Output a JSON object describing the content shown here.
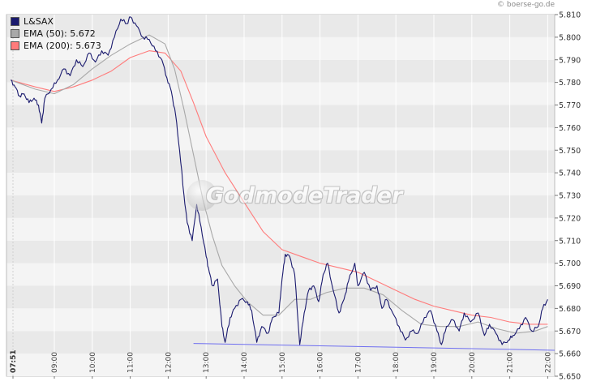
{
  "credit": "© boerse-go.de",
  "watermark": "GodmodeTrader",
  "colors": {
    "price": "#1a1a6e",
    "ema50": "#a8a8a8",
    "ema200": "#ff7b7b",
    "support": "#6f6ff0",
    "band_light": "#f4f4f4",
    "band_dark": "#e9e9e9"
  },
  "chart_data": {
    "type": "line",
    "title": "",
    "xlabel": "",
    "ylabel": "",
    "ylim": [
      5.65,
      5.81
    ],
    "y_ticks": [
      "5.650",
      "5.660",
      "5.670",
      "5.680",
      "5.690",
      "5.700",
      "5.710",
      "5.720",
      "5.730",
      "5.740",
      "5.750",
      "5.760",
      "5.770",
      "5.780",
      "5.790",
      "5.800",
      "5.810"
    ],
    "x_start_label": "07:51",
    "x_ticks": [
      "09:00",
      "10:00",
      "11:00",
      "12:00",
      "13:00",
      "14:00",
      "15:00",
      "16:00",
      "17:00",
      "18:00",
      "19:00",
      "20:00",
      "21:00",
      "22:00"
    ],
    "legend_position": "top-left",
    "grid": true,
    "series": [
      {
        "name": "L&SAX",
        "legend": "L&SAX",
        "points": [
          [
            "07:51",
            5.781
          ],
          [
            "07:58",
            5.778
          ],
          [
            "08:05",
            5.774
          ],
          [
            "08:12",
            5.775
          ],
          [
            "08:20",
            5.771
          ],
          [
            "08:28",
            5.773
          ],
          [
            "08:35",
            5.77
          ],
          [
            "08:40",
            5.762
          ],
          [
            "08:45",
            5.773
          ],
          [
            "08:55",
            5.777
          ],
          [
            "09:05",
            5.781
          ],
          [
            "09:15",
            5.786
          ],
          [
            "09:25",
            5.783
          ],
          [
            "09:35",
            5.79
          ],
          [
            "09:45",
            5.787
          ],
          [
            "09:55",
            5.793
          ],
          [
            "10:05",
            5.789
          ],
          [
            "10:15",
            5.794
          ],
          [
            "10:25",
            5.792
          ],
          [
            "10:35",
            5.8
          ],
          [
            "10:45",
            5.808
          ],
          [
            "10:55",
            5.806
          ],
          [
            "11:00",
            5.809
          ],
          [
            "11:10",
            5.805
          ],
          [
            "11:20",
            5.8
          ],
          [
            "11:30",
            5.799
          ],
          [
            "11:40",
            5.794
          ],
          [
            "11:50",
            5.79
          ],
          [
            "11:58",
            5.782
          ],
          [
            "12:05",
            5.776
          ],
          [
            "12:12",
            5.765
          ],
          [
            "12:18",
            5.75
          ],
          [
            "12:25",
            5.73
          ],
          [
            "12:30",
            5.718
          ],
          [
            "12:38",
            5.71
          ],
          [
            "12:45",
            5.726
          ],
          [
            "12:52",
            5.716
          ],
          [
            "13:00",
            5.703
          ],
          [
            "13:05",
            5.696
          ],
          [
            "13:10",
            5.69
          ],
          [
            "13:18",
            5.693
          ],
          [
            "13:25",
            5.672
          ],
          [
            "13:30",
            5.665
          ],
          [
            "13:38",
            5.676
          ],
          [
            "13:45",
            5.68
          ],
          [
            "13:55",
            5.684
          ],
          [
            "14:05",
            5.683
          ],
          [
            "14:12",
            5.679
          ],
          [
            "14:20",
            5.665
          ],
          [
            "14:28",
            5.672
          ],
          [
            "14:38",
            5.669
          ],
          [
            "14:45",
            5.676
          ],
          [
            "14:55",
            5.678
          ],
          [
            "15:00",
            5.693
          ],
          [
            "15:05",
            5.704
          ],
          [
            "15:12",
            5.703
          ],
          [
            "15:20",
            5.695
          ],
          [
            "15:28",
            5.664
          ],
          [
            "15:35",
            5.678
          ],
          [
            "15:42",
            5.688
          ],
          [
            "15:50",
            5.69
          ],
          [
            "15:58",
            5.683
          ],
          [
            "16:05",
            5.695
          ],
          [
            "16:12",
            5.7
          ],
          [
            "16:20",
            5.689
          ],
          [
            "16:30",
            5.678
          ],
          [
            "16:38",
            5.684
          ],
          [
            "16:45",
            5.692
          ],
          [
            "16:55",
            5.7
          ],
          [
            "17:00",
            5.69
          ],
          [
            "17:10",
            5.696
          ],
          [
            "17:20",
            5.688
          ],
          [
            "17:30",
            5.69
          ],
          [
            "17:38",
            5.68
          ],
          [
            "17:45",
            5.684
          ],
          [
            "17:55",
            5.678
          ],
          [
            "18:05",
            5.672
          ],
          [
            "18:15",
            5.666
          ],
          [
            "18:25",
            5.67
          ],
          [
            "18:35",
            5.669
          ],
          [
            "18:45",
            5.676
          ],
          [
            "18:55",
            5.679
          ],
          [
            "19:05",
            5.67
          ],
          [
            "19:12",
            5.664
          ],
          [
            "19:20",
            5.672
          ],
          [
            "19:30",
            5.675
          ],
          [
            "19:40",
            5.67
          ],
          [
            "19:48",
            5.678
          ],
          [
            "19:58",
            5.674
          ],
          [
            "20:10",
            5.678
          ],
          [
            "20:20",
            5.668
          ],
          [
            "20:28",
            5.673
          ],
          [
            "20:38",
            5.669
          ],
          [
            "20:48",
            5.664
          ],
          [
            "20:58",
            5.666
          ],
          [
            "21:05",
            5.668
          ],
          [
            "21:15",
            5.671
          ],
          [
            "21:25",
            5.676
          ],
          [
            "21:35",
            5.67
          ],
          [
            "21:45",
            5.672
          ],
          [
            "21:52",
            5.68
          ],
          [
            "22:00",
            5.684
          ]
        ]
      },
      {
        "name": "EMA (50)",
        "legend": "EMA (50): 5.672",
        "points": [
          [
            "07:51",
            5.781
          ],
          [
            "08:30",
            5.777
          ],
          [
            "09:00",
            5.775
          ],
          [
            "09:30",
            5.779
          ],
          [
            "10:00",
            5.786
          ],
          [
            "10:30",
            5.792
          ],
          [
            "11:00",
            5.797
          ],
          [
            "11:30",
            5.801
          ],
          [
            "11:55",
            5.797
          ],
          [
            "12:10",
            5.786
          ],
          [
            "12:25",
            5.768
          ],
          [
            "12:40",
            5.748
          ],
          [
            "12:55",
            5.728
          ],
          [
            "13:10",
            5.712
          ],
          [
            "13:25",
            5.699
          ],
          [
            "13:45",
            5.69
          ],
          [
            "14:05",
            5.683
          ],
          [
            "14:30",
            5.677
          ],
          [
            "14:55",
            5.677
          ],
          [
            "15:20",
            5.684
          ],
          [
            "15:45",
            5.684
          ],
          [
            "16:10",
            5.687
          ],
          [
            "16:40",
            5.689
          ],
          [
            "17:10",
            5.689
          ],
          [
            "17:40",
            5.686
          ],
          [
            "18:10",
            5.679
          ],
          [
            "18:40",
            5.673
          ],
          [
            "19:10",
            5.672
          ],
          [
            "19:40",
            5.672
          ],
          [
            "20:10",
            5.674
          ],
          [
            "20:40",
            5.671
          ],
          [
            "21:10",
            5.669
          ],
          [
            "21:40",
            5.67
          ],
          [
            "22:00",
            5.672
          ]
        ]
      },
      {
        "name": "EMA (200)",
        "legend": "EMA (200): 5.673",
        "points": [
          [
            "07:51",
            5.781
          ],
          [
            "08:30",
            5.778
          ],
          [
            "09:00",
            5.776
          ],
          [
            "09:30",
            5.778
          ],
          [
            "10:00",
            5.781
          ],
          [
            "10:30",
            5.785
          ],
          [
            "11:00",
            5.791
          ],
          [
            "11:30",
            5.794
          ],
          [
            "11:55",
            5.793
          ],
          [
            "12:20",
            5.785
          ],
          [
            "12:40",
            5.771
          ],
          [
            "13:00",
            5.756
          ],
          [
            "13:30",
            5.74
          ],
          [
            "14:00",
            5.727
          ],
          [
            "14:30",
            5.714
          ],
          [
            "15:00",
            5.706
          ],
          [
            "15:30",
            5.703
          ],
          [
            "16:00",
            5.7
          ],
          [
            "16:30",
            5.698
          ],
          [
            "17:00",
            5.696
          ],
          [
            "17:30",
            5.692
          ],
          [
            "18:00",
            5.688
          ],
          [
            "18:30",
            5.684
          ],
          [
            "19:00",
            5.681
          ],
          [
            "19:30",
            5.679
          ],
          [
            "20:00",
            5.677
          ],
          [
            "20:30",
            5.676
          ],
          [
            "21:00",
            5.674
          ],
          [
            "21:30",
            5.673
          ],
          [
            "22:00",
            5.673
          ]
        ]
      }
    ],
    "support_line": [
      [
        "12:40",
        5.6645
      ],
      [
        "22:25",
        5.6615
      ]
    ]
  }
}
